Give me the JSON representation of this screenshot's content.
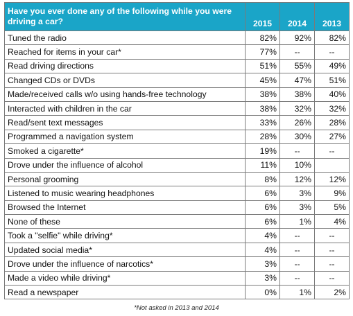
{
  "header": {
    "question": "Have you ever done any of the following while you were driving a car?",
    "years": [
      "2015",
      "2014",
      "2013"
    ]
  },
  "rows": [
    {
      "label": "Tuned the radio",
      "v2015": "82%",
      "v2014": "92%",
      "v2013": "82%"
    },
    {
      "label": "Reached for items in your car*",
      "v2015": "77%",
      "v2014": "--",
      "v2013": "--"
    },
    {
      "label": "Read driving directions",
      "v2015": "51%",
      "v2014": "55%",
      "v2013": "49%"
    },
    {
      "label": "Changed CDs or DVDs",
      "v2015": "45%",
      "v2014": "47%",
      "v2013": "51%"
    },
    {
      "label": "Made/received calls w/o using hands-free technology",
      "v2015": "38%",
      "v2014": "38%",
      "v2013": "40%"
    },
    {
      "label": "Interacted with children in the car",
      "v2015": "38%",
      "v2014": "32%",
      "v2013": "32%"
    },
    {
      "label": "Read/sent text messages",
      "v2015": "33%",
      "v2014": "26%",
      "v2013": "28%"
    },
    {
      "label": "Programmed a navigation system",
      "v2015": "28%",
      "v2014": "30%",
      "v2013": "27%"
    },
    {
      "label": "Smoked a cigarette*",
      "v2015": "19%",
      "v2014": "--",
      "v2013": "--"
    },
    {
      "label": "Drove under the influence of alcohol",
      "v2015": "11%",
      "v2014": "10%",
      "v2013": ""
    },
    {
      "label": "Personal grooming",
      "v2015": "8%",
      "v2014": "12%",
      "v2013": "12%"
    },
    {
      "label": "Listened to music wearing headphones",
      "v2015": "6%",
      "v2014": "3%",
      "v2013": "9%"
    },
    {
      "label": "Browsed the Internet",
      "v2015": "6%",
      "v2014": "3%",
      "v2013": "5%"
    },
    {
      "label": "None of these",
      "v2015": "6%",
      "v2014": "1%",
      "v2013": "4%"
    },
    {
      "label": "Took a \"selfie\" while driving*",
      "v2015": "4%",
      "v2014": "--",
      "v2013": "--"
    },
    {
      "label": "Updated social media*",
      "v2015": "4%",
      "v2014": "--",
      "v2013": "--"
    },
    {
      "label": "Drove under the influence of narcotics*",
      "v2015": "3%",
      "v2014": "--",
      "v2013": "--"
    },
    {
      "label": "Made a video while driving*",
      "v2015": "3%",
      "v2014": "--",
      "v2013": "--"
    },
    {
      "label": "Read a newspaper",
      "v2015": "0%",
      "v2014": "1%",
      "v2013": "2%"
    }
  ],
  "footnote": "*Not asked in 2013 and 2014",
  "colors": {
    "header_bg": "#1aa5c8",
    "header_text": "#ffffff",
    "border": "#7a7a7a"
  }
}
